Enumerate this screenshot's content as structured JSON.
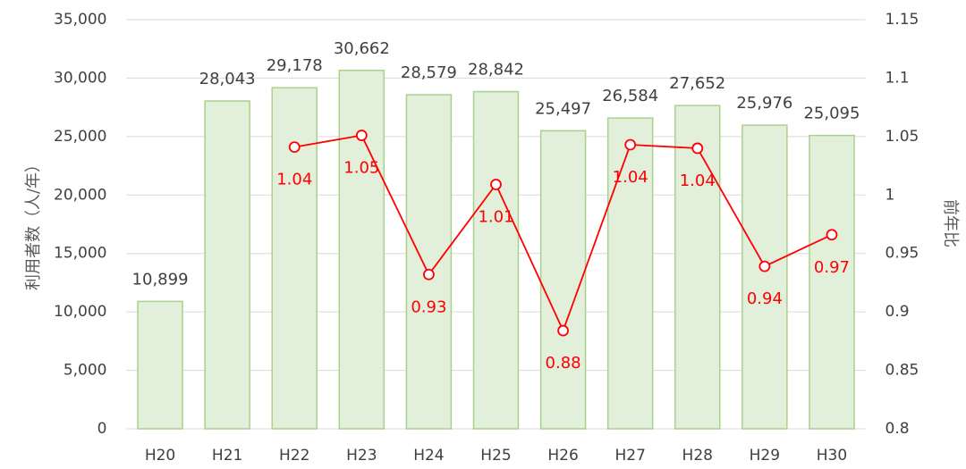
{
  "chart_data": {
    "type": "bar_line",
    "categories": [
      "H20",
      "H21",
      "H22",
      "H23",
      "H24",
      "H25",
      "H26",
      "H27",
      "H28",
      "H29",
      "H30"
    ],
    "series": [
      {
        "name": "利用者数",
        "type": "bar",
        "color": "#e2efda",
        "edge_color": "#a9d18e",
        "values": [
          10899,
          28043,
          29178,
          30662,
          28579,
          28842,
          25497,
          26584,
          27652,
          25976,
          25095
        ],
        "value_labels": [
          "10,899",
          "28,043",
          "29,178",
          "30,662",
          "28,579",
          "28,842",
          "25,497",
          "26,584",
          "27,652",
          "25,976",
          "25,095"
        ]
      },
      {
        "name": "前年比",
        "type": "line",
        "axis": "y2",
        "color": "#ff0000",
        "values": [
          null,
          null,
          1.041,
          1.051,
          0.932,
          1.009,
          0.884,
          1.043,
          1.04,
          0.939,
          0.966
        ],
        "value_labels": [
          null,
          null,
          "1.04",
          "1.05",
          "0.93",
          "1.01",
          "0.88",
          "1.04",
          "1.04",
          "0.94",
          "0.97"
        ]
      }
    ],
    "ylabel": "利用者数（人/年）",
    "y2label": "前年比",
    "ylim": [
      0,
      35000
    ],
    "yticks": [
      0,
      {
        "value": 5000,
        "label": "5,000"
      },
      {
        "value": 10000,
        "label": "10,000"
      },
      {
        "value": 15000,
        "label": "15,000"
      },
      {
        "value": 20000,
        "label": "20,000"
      },
      {
        "value": 25000,
        "label": "25,000"
      },
      {
        "value": 30000,
        "label": "30,000"
      },
      {
        "value": 35000,
        "label": "35,000"
      }
    ],
    "y2lim": [
      0.8,
      1.15
    ],
    "y2ticks": [
      0.8,
      0.85,
      0.9,
      0.95,
      1,
      1.05,
      1.1,
      1.15
    ],
    "grid": true
  }
}
